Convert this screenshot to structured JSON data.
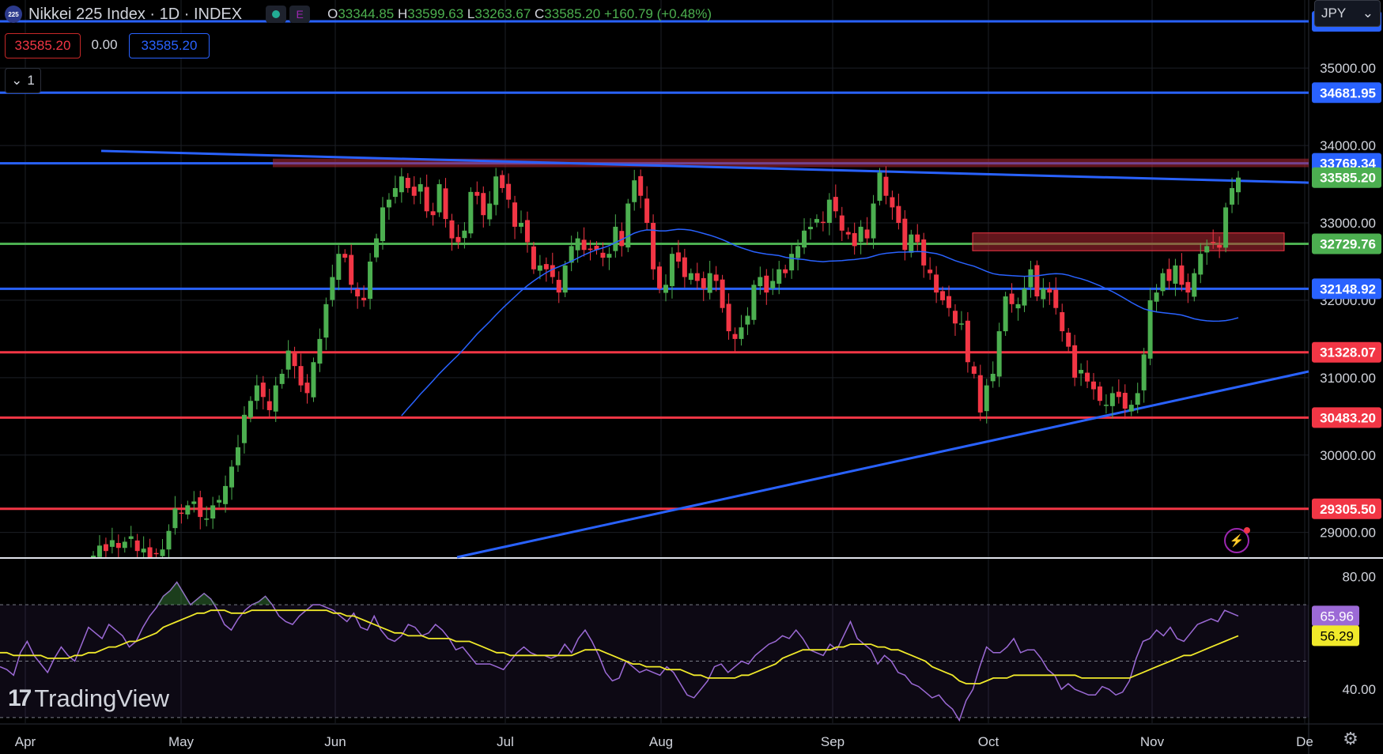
{
  "header": {
    "logo_text": "225",
    "title": "Nikkei 225 Index · 1D · INDEX",
    "status_e": "E",
    "ohlc": {
      "o_label": "O",
      "o": "33344.85",
      "h_label": "H",
      "h": "33599.63",
      "l_label": "L",
      "l": "33263.67",
      "c_label": "C",
      "c": "33585.20",
      "change": "+160.79 (+0.48%)"
    }
  },
  "trade": {
    "sell": "33585.20",
    "spread": "0.00",
    "buy": "33585.20"
  },
  "collapse": {
    "chevron": "⌄",
    "count": "1"
  },
  "currency": {
    "label": "JPY",
    "chevron": "⌄"
  },
  "watermark": {
    "logo": "17",
    "name": "TradingView"
  },
  "icons": {
    "settings": "gear-icon",
    "alert": "lightning-icon"
  },
  "colors": {
    "up": "#4caf50",
    "down": "#f23645",
    "blue": "#2962ff",
    "green_line": "#4caf50",
    "red_line": "#f23645",
    "ma": "#2962ff",
    "rsi": "#9c6ad6",
    "rsi_ma": "#f0e92a"
  },
  "chart_data": [
    {
      "type": "candlestick",
      "title": "Nikkei 225 Index · 1D · INDEX",
      "x_tick_labels": [
        "Apr",
        "May",
        "Jun",
        "Jul",
        "Aug",
        "Sep",
        "Oct",
        "Nov",
        "De"
      ],
      "y_tick_labels": [
        35000,
        34000,
        33000,
        32000,
        31000,
        30000,
        29000
      ],
      "ylim": [
        28680,
        35880
      ],
      "grid": true,
      "horizontal_levels": [
        {
          "value": 35603.63,
          "label": "35603.63",
          "color": "#2962ff"
        },
        {
          "value": 34681.95,
          "label": "34681.95",
          "color": "#2962ff"
        },
        {
          "value": 33769.34,
          "label": "33769.34",
          "color": "#2962ff"
        },
        {
          "value": 33585.2,
          "label": "33585.20",
          "color": "#4caf50"
        },
        {
          "value": 32729.76,
          "label": "32729.76",
          "color": "#4caf50"
        },
        {
          "value": 32148.92,
          "label": "32148.92",
          "color": "#2962ff"
        },
        {
          "value": 31328.07,
          "label": "31328.07",
          "color": "#f23645"
        },
        {
          "value": 30483.2,
          "label": "30483.20",
          "color": "#f23645"
        },
        {
          "value": 29305.5,
          "label": "29305.50",
          "color": "#f23645"
        }
      ],
      "candles_close": [
        28700,
        28830,
        28760,
        28900,
        28800,
        28880,
        28950,
        28760,
        28790,
        28680,
        28730,
        28780,
        29020,
        29310,
        29250,
        29350,
        29400,
        29200,
        29180,
        29350,
        29420,
        29600,
        29850,
        30100,
        30520,
        30700,
        30900,
        30750,
        30580,
        30900,
        31050,
        31350,
        31150,
        30900,
        30800,
        31200,
        31500,
        31950,
        32300,
        32600,
        32550,
        32200,
        32050,
        32000,
        32500,
        32800,
        33200,
        33300,
        33450,
        33600,
        33450,
        33350,
        33500,
        33150,
        33100,
        33500,
        33050,
        32800,
        32750,
        32900,
        33400,
        33350,
        33100,
        33250,
        33600,
        33450,
        33300,
        32950,
        33000,
        32750,
        32400,
        32450,
        32400,
        32300,
        32100,
        32450,
        32700,
        32800,
        32650,
        32650,
        32650,
        32550,
        32600,
        32950,
        32700,
        33250,
        33550,
        33350,
        33000,
        32400,
        32150,
        32200,
        32600,
        32500,
        32300,
        32350,
        32250,
        32150,
        32350,
        32250,
        31900,
        31600,
        31500,
        31650,
        31800,
        32200,
        32300,
        32100,
        32250,
        32400,
        32350,
        32600,
        32700,
        32900,
        32950,
        33050,
        33000,
        33300,
        33150,
        32900,
        32850,
        32700,
        32950,
        32800,
        33250,
        33650,
        33350,
        33200,
        33000,
        32650,
        32850,
        32750,
        32450,
        32350,
        32100,
        32000,
        31900,
        31700,
        31700,
        31200,
        31050,
        30550,
        30900,
        31050,
        31600,
        32050,
        31950,
        31950,
        32150,
        32400,
        32050,
        32150,
        32100,
        31900,
        31600,
        31400,
        31000,
        31100,
        30950,
        30850,
        30700,
        30650,
        30800,
        30750,
        30600,
        30650,
        30800,
        31300,
        32000,
        32100,
        32350,
        32250,
        32450,
        32200,
        32100,
        32350,
        32600,
        32700,
        32750,
        32680,
        33200,
        33450,
        33585
      ]
    },
    {
      "type": "line",
      "title": "RSI",
      "y_tick_labels": [
        80,
        40
      ],
      "ylim": [
        28,
        86
      ],
      "bands": [
        70,
        50,
        30
      ],
      "series": [
        {
          "values": [
            48,
            47,
            45,
            53,
            57,
            52,
            49,
            46,
            51,
            55,
            52,
            50,
            56,
            62,
            60,
            58,
            63,
            61,
            59,
            55,
            57,
            62,
            66,
            69,
            73,
            75,
            78,
            74,
            70,
            72,
            74,
            72,
            68,
            63,
            61,
            65,
            68,
            70,
            71,
            73,
            70,
            66,
            64,
            63,
            66,
            68,
            70,
            70,
            69,
            68,
            66,
            64,
            67,
            62,
            61,
            66,
            61,
            58,
            57,
            59,
            63,
            62,
            59,
            60,
            63,
            61,
            58,
            54,
            55,
            52,
            49,
            49,
            49,
            48,
            47,
            50,
            53,
            55,
            53,
            52,
            52,
            51,
            52,
            56,
            53,
            58,
            61,
            57,
            52,
            46,
            43,
            44,
            50,
            48,
            46,
            47,
            46,
            45,
            48,
            46,
            42,
            38,
            37,
            40,
            43,
            48,
            49,
            46,
            48,
            50,
            49,
            52,
            54,
            56,
            57,
            59,
            58,
            61,
            58,
            54,
            53,
            52,
            56,
            54,
            59,
            64,
            58,
            56,
            54,
            49,
            52,
            50,
            46,
            45,
            42,
            41,
            39,
            37,
            38,
            35,
            33,
            29,
            36,
            40,
            48,
            55,
            53,
            53,
            55,
            58,
            53,
            54,
            54,
            51,
            47,
            45,
            40,
            42,
            40,
            39,
            38,
            38,
            41,
            40,
            38,
            39,
            43,
            51,
            57,
            58,
            61,
            59,
            62,
            58,
            57,
            60,
            63,
            64,
            65,
            64,
            68,
            67,
            66
          ]
        },
        {
          "values": [
            53,
            53,
            52,
            52,
            52,
            52,
            52,
            51,
            51,
            51,
            51,
            52,
            52,
            53,
            53,
            54,
            55,
            55,
            56,
            57,
            57,
            58,
            59,
            60,
            62,
            63,
            64,
            65,
            66,
            67,
            67,
            68,
            68,
            68,
            67,
            67,
            67,
            68,
            68,
            68,
            68,
            68,
            68,
            68,
            68,
            68,
            68,
            68,
            68,
            67,
            67,
            66,
            66,
            65,
            64,
            63,
            62,
            61,
            60,
            60,
            59,
            59,
            59,
            58,
            58,
            58,
            58,
            57,
            57,
            57,
            56,
            55,
            54,
            53,
            53,
            52,
            52,
            52,
            52,
            52,
            52,
            52,
            52,
            52,
            52,
            53,
            54,
            54,
            54,
            53,
            52,
            51,
            50,
            49,
            49,
            48,
            48,
            48,
            47,
            47,
            47,
            46,
            45,
            45,
            44,
            44,
            44,
            44,
            44,
            45,
            45,
            46,
            47,
            48,
            49,
            51,
            52,
            53,
            54,
            54,
            54,
            54,
            54,
            55,
            55,
            56,
            56,
            56,
            56,
            55,
            55,
            54,
            54,
            53,
            52,
            51,
            50,
            48,
            47,
            46,
            45,
            43,
            42,
            42,
            42,
            43,
            44,
            44,
            44,
            45,
            45,
            45,
            45,
            45,
            45,
            45,
            45,
            45,
            45,
            44,
            44,
            44,
            44,
            44,
            44,
            44,
            44,
            45,
            46,
            47,
            48,
            49,
            50,
            51,
            52,
            52,
            53,
            54,
            55,
            56,
            57,
            58,
            59
          ]
        }
      ],
      "value_labels": [
        "80.00",
        "40.00",
        "65.96",
        "56.29"
      ]
    }
  ]
}
